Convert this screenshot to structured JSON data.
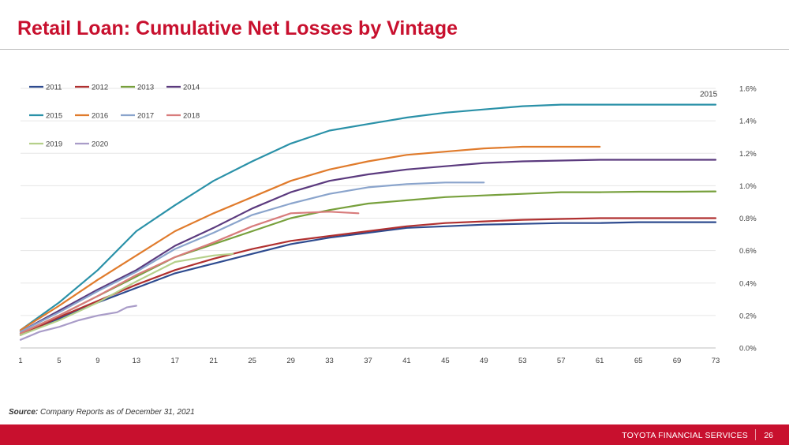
{
  "page": {
    "title": "Retail Loan: Cumulative Net Losses by Vintage",
    "source_label": "Source:",
    "source_text": " Company Reports as of December 31, 2021",
    "footer_text": "TOYOTA FINANCIAL SERVICES",
    "page_number": "26"
  },
  "chart_data": {
    "type": "line",
    "title": "",
    "xlabel": "",
    "ylabel": "",
    "x_ticks": [
      1,
      5,
      9,
      13,
      17,
      21,
      25,
      29,
      33,
      37,
      41,
      45,
      49,
      53,
      57,
      61,
      65,
      69,
      73
    ],
    "xlim": [
      1,
      73
    ],
    "y_ticks": [
      "0.0%",
      "0.2%",
      "0.4%",
      "0.6%",
      "0.8%",
      "1.0%",
      "1.2%",
      "1.4%",
      "1.6%"
    ],
    "ylim": [
      0,
      1.6
    ],
    "y_axis_side": "right",
    "grid": true,
    "legend_position": "top-left",
    "annotation": "2015",
    "series": [
      {
        "name": "2011",
        "color": "#2e4b8f",
        "points": [
          [
            1,
            0.08
          ],
          [
            5,
            0.18
          ],
          [
            9,
            0.28
          ],
          [
            13,
            0.37
          ],
          [
            17,
            0.46
          ],
          [
            21,
            0.52
          ],
          [
            25,
            0.58
          ],
          [
            29,
            0.64
          ],
          [
            33,
            0.68
          ],
          [
            37,
            0.71
          ],
          [
            41,
            0.74
          ],
          [
            45,
            0.75
          ],
          [
            49,
            0.76
          ],
          [
            53,
            0.765
          ],
          [
            57,
            0.77
          ],
          [
            61,
            0.77
          ],
          [
            65,
            0.775
          ],
          [
            69,
            0.775
          ],
          [
            73,
            0.775
          ]
        ]
      },
      {
        "name": "2012",
        "color": "#b03030",
        "points": [
          [
            1,
            0.08
          ],
          [
            5,
            0.19
          ],
          [
            9,
            0.29
          ],
          [
            13,
            0.39
          ],
          [
            17,
            0.48
          ],
          [
            21,
            0.55
          ],
          [
            25,
            0.61
          ],
          [
            29,
            0.66
          ],
          [
            33,
            0.69
          ],
          [
            37,
            0.72
          ],
          [
            41,
            0.75
          ],
          [
            45,
            0.77
          ],
          [
            49,
            0.78
          ],
          [
            53,
            0.79
          ],
          [
            57,
            0.795
          ],
          [
            61,
            0.8
          ],
          [
            65,
            0.8
          ],
          [
            69,
            0.8
          ],
          [
            73,
            0.8
          ]
        ]
      },
      {
        "name": "2013",
        "color": "#77a03c",
        "points": [
          [
            1,
            0.09
          ],
          [
            5,
            0.2
          ],
          [
            9,
            0.32
          ],
          [
            13,
            0.44
          ],
          [
            17,
            0.56
          ],
          [
            21,
            0.64
          ],
          [
            25,
            0.72
          ],
          [
            29,
            0.8
          ],
          [
            33,
            0.85
          ],
          [
            37,
            0.89
          ],
          [
            41,
            0.91
          ],
          [
            45,
            0.93
          ],
          [
            49,
            0.94
          ],
          [
            53,
            0.95
          ],
          [
            57,
            0.96
          ],
          [
            61,
            0.96
          ],
          [
            65,
            0.963
          ],
          [
            69,
            0.963
          ],
          [
            73,
            0.965
          ]
        ]
      },
      {
        "name": "2014",
        "color": "#5b3a7e",
        "points": [
          [
            1,
            0.1
          ],
          [
            5,
            0.23
          ],
          [
            9,
            0.36
          ],
          [
            13,
            0.48
          ],
          [
            17,
            0.63
          ],
          [
            21,
            0.74
          ],
          [
            25,
            0.86
          ],
          [
            29,
            0.96
          ],
          [
            33,
            1.03
          ],
          [
            37,
            1.07
          ],
          [
            41,
            1.1
          ],
          [
            45,
            1.12
          ],
          [
            49,
            1.14
          ],
          [
            53,
            1.15
          ],
          [
            57,
            1.155
          ],
          [
            61,
            1.16
          ],
          [
            65,
            1.16
          ],
          [
            69,
            1.16
          ],
          [
            73,
            1.16
          ]
        ]
      },
      {
        "name": "2015",
        "color": "#2a91a8",
        "points": [
          [
            1,
            0.11
          ],
          [
            5,
            0.28
          ],
          [
            9,
            0.48
          ],
          [
            13,
            0.72
          ],
          [
            17,
            0.88
          ],
          [
            21,
            1.03
          ],
          [
            25,
            1.15
          ],
          [
            29,
            1.26
          ],
          [
            33,
            1.34
          ],
          [
            37,
            1.38
          ],
          [
            41,
            1.42
          ],
          [
            45,
            1.45
          ],
          [
            49,
            1.47
          ],
          [
            53,
            1.49
          ],
          [
            57,
            1.5
          ],
          [
            61,
            1.5
          ],
          [
            65,
            1.5
          ],
          [
            69,
            1.5
          ],
          [
            73,
            1.5
          ]
        ]
      },
      {
        "name": "2016",
        "color": "#e07b2c",
        "points": [
          [
            1,
            0.11
          ],
          [
            5,
            0.26
          ],
          [
            9,
            0.42
          ],
          [
            13,
            0.57
          ],
          [
            17,
            0.72
          ],
          [
            21,
            0.83
          ],
          [
            25,
            0.93
          ],
          [
            29,
            1.03
          ],
          [
            33,
            1.1
          ],
          [
            37,
            1.15
          ],
          [
            41,
            1.19
          ],
          [
            45,
            1.21
          ],
          [
            49,
            1.23
          ],
          [
            53,
            1.24
          ],
          [
            57,
            1.24
          ],
          [
            61,
            1.24
          ]
        ]
      },
      {
        "name": "2017",
        "color": "#8aa4cc",
        "points": [
          [
            1,
            0.1
          ],
          [
            5,
            0.22
          ],
          [
            9,
            0.35
          ],
          [
            13,
            0.47
          ],
          [
            17,
            0.61
          ],
          [
            21,
            0.71
          ],
          [
            25,
            0.82
          ],
          [
            29,
            0.89
          ],
          [
            33,
            0.95
          ],
          [
            37,
            0.99
          ],
          [
            41,
            1.01
          ],
          [
            45,
            1.02
          ],
          [
            49,
            1.02
          ]
        ]
      },
      {
        "name": "2018",
        "color": "#d87c7c",
        "points": [
          [
            1,
            0.09
          ],
          [
            5,
            0.2
          ],
          [
            9,
            0.32
          ],
          [
            13,
            0.45
          ],
          [
            17,
            0.56
          ],
          [
            21,
            0.65
          ],
          [
            25,
            0.75
          ],
          [
            29,
            0.83
          ],
          [
            33,
            0.84
          ],
          [
            36,
            0.83
          ]
        ]
      },
      {
        "name": "2019",
        "color": "#b5d08a",
        "points": [
          [
            1,
            0.08
          ],
          [
            5,
            0.17
          ],
          [
            9,
            0.28
          ],
          [
            13,
            0.41
          ],
          [
            17,
            0.53
          ],
          [
            21,
            0.57
          ],
          [
            23,
            0.58
          ]
        ]
      },
      {
        "name": "2020",
        "color": "#a99cc8",
        "points": [
          [
            1,
            0.05
          ],
          [
            3,
            0.1
          ],
          [
            5,
            0.13
          ],
          [
            7,
            0.17
          ],
          [
            9,
            0.2
          ],
          [
            11,
            0.22
          ],
          [
            12,
            0.25
          ],
          [
            13,
            0.26
          ]
        ]
      }
    ]
  }
}
